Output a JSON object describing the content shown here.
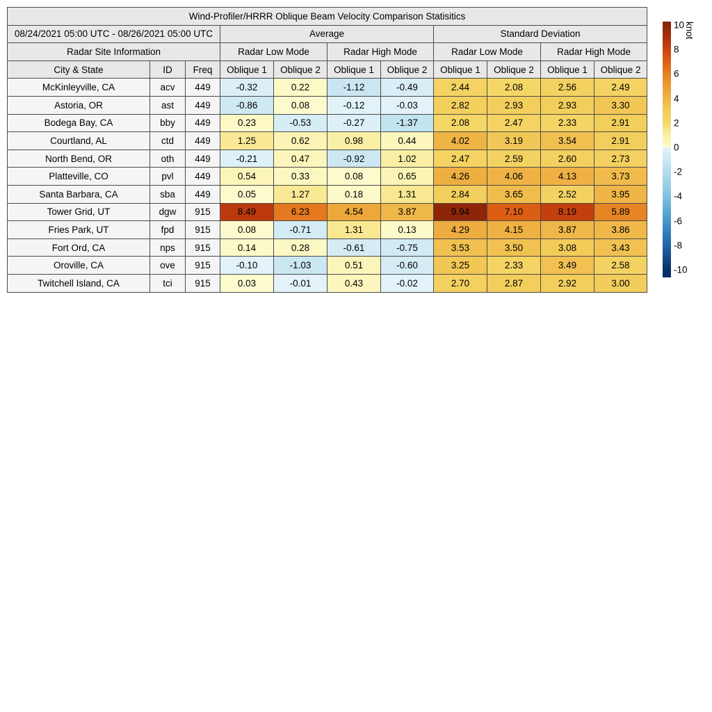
{
  "figure": {
    "title": "Wind-Profiler/HRRR Oblique Beam Velocity Comparison Statisitics"
  },
  "table": {
    "date_range": "08/24/2021 05:00 UTC - 08/26/2021 05:00 UTC",
    "section_headers": {
      "average": "Average",
      "std": "Standard Deviation",
      "site_info": "Radar Site Information"
    },
    "mode_headers": [
      "Radar Low Mode",
      "Radar High Mode",
      "Radar Low Mode",
      "Radar High Mode"
    ],
    "column_headers": [
      "City & State",
      "ID",
      "Freq",
      "Oblique 1",
      "Oblique 2",
      "Oblique 1",
      "Oblique 2",
      "Oblique 1",
      "Oblique 2",
      "Oblique 1",
      "Oblique 2"
    ]
  },
  "colorbar": {
    "label": "knot",
    "unit": "knot",
    "min": -10,
    "max": 10,
    "ticks": [
      10,
      8,
      6,
      4,
      2,
      0,
      -2,
      -4,
      -6,
      -8,
      -10
    ],
    "stops": [
      [
        -10,
        "#083069"
      ],
      [
        -8,
        "#1e64a9"
      ],
      [
        -6,
        "#4597c9"
      ],
      [
        -4,
        "#82c2de"
      ],
      [
        -2,
        "#b3dcec"
      ],
      [
        -0.001,
        "#e4f3f9"
      ],
      [
        0,
        "#fdfcd0"
      ],
      [
        1,
        "#faefa5"
      ],
      [
        2,
        "#f5d869"
      ],
      [
        3,
        "#f2cd5b"
      ],
      [
        4,
        "#efb446"
      ],
      [
        5,
        "#ec9d32"
      ],
      [
        6,
        "#e68122"
      ],
      [
        7,
        "#dd6014"
      ],
      [
        8,
        "#c9430f"
      ],
      [
        9,
        "#ac2f0b"
      ],
      [
        10,
        "#8c2408"
      ]
    ]
  },
  "chart_data": {
    "type": "table",
    "title": "Wind-Profiler/HRRR Oblique Beam Velocity Comparison Statisitics",
    "unit": "knot",
    "colorbar_range": [
      -10,
      10
    ],
    "value_columns": [
      "Average Radar Low Mode Oblique 1",
      "Average Radar Low Mode Oblique 2",
      "Average Radar High Mode Oblique 1",
      "Average Radar High Mode Oblique 2",
      "Standard Deviation Radar Low Mode Oblique 1",
      "Standard Deviation Radar Low Mode Oblique 2",
      "Standard Deviation Radar High Mode Oblique 1",
      "Standard Deviation Radar High Mode Oblique 2"
    ],
    "rows": [
      {
        "city": "McKinleyville, CA",
        "id": "acv",
        "freq": "449",
        "values": [
          -0.32,
          0.22,
          -1.12,
          -0.49,
          2.44,
          2.08,
          2.56,
          2.49
        ]
      },
      {
        "city": "Astoria, OR",
        "id": "ast",
        "freq": "449",
        "values": [
          -0.86,
          0.08,
          -0.12,
          -0.03,
          2.82,
          2.93,
          2.93,
          3.3
        ]
      },
      {
        "city": "Bodega Bay, CA",
        "id": "bby",
        "freq": "449",
        "values": [
          0.23,
          -0.53,
          -0.27,
          -1.37,
          2.08,
          2.47,
          2.33,
          2.91
        ]
      },
      {
        "city": "Courtland, AL",
        "id": "ctd",
        "freq": "449",
        "values": [
          1.25,
          0.62,
          0.98,
          0.44,
          4.02,
          3.19,
          3.54,
          2.91
        ]
      },
      {
        "city": "North Bend, OR",
        "id": "oth",
        "freq": "449",
        "values": [
          -0.21,
          0.47,
          -0.92,
          1.02,
          2.47,
          2.59,
          2.6,
          2.73
        ]
      },
      {
        "city": "Platteville, CO",
        "id": "pvl",
        "freq": "449",
        "values": [
          0.54,
          0.33,
          0.08,
          0.65,
          4.26,
          4.06,
          4.13,
          3.73
        ]
      },
      {
        "city": "Santa Barbara, CA",
        "id": "sba",
        "freq": "449",
        "values": [
          0.05,
          1.27,
          0.18,
          1.31,
          2.84,
          3.65,
          2.52,
          3.95
        ]
      },
      {
        "city": "Tower Grid, UT",
        "id": "dgw",
        "freq": "915",
        "values": [
          8.49,
          6.23,
          4.54,
          3.87,
          9.94,
          7.1,
          8.19,
          5.89
        ]
      },
      {
        "city": "Fries Park, UT",
        "id": "fpd",
        "freq": "915",
        "values": [
          0.08,
          -0.71,
          1.31,
          0.13,
          4.29,
          4.15,
          3.87,
          3.86
        ]
      },
      {
        "city": "Fort Ord, CA",
        "id": "nps",
        "freq": "915",
        "values": [
          0.14,
          0.28,
          -0.61,
          -0.75,
          3.53,
          3.5,
          3.08,
          3.43
        ]
      },
      {
        "city": "Oroville, CA",
        "id": "ove",
        "freq": "915",
        "values": [
          -0.1,
          -1.03,
          0.51,
          -0.6,
          3.25,
          2.33,
          3.49,
          2.58
        ]
      },
      {
        "city": "Twitchell Island, CA",
        "id": "tci",
        "freq": "915",
        "values": [
          0.03,
          -0.01,
          0.43,
          -0.02,
          2.7,
          2.87,
          2.92,
          3.0
        ]
      }
    ]
  }
}
